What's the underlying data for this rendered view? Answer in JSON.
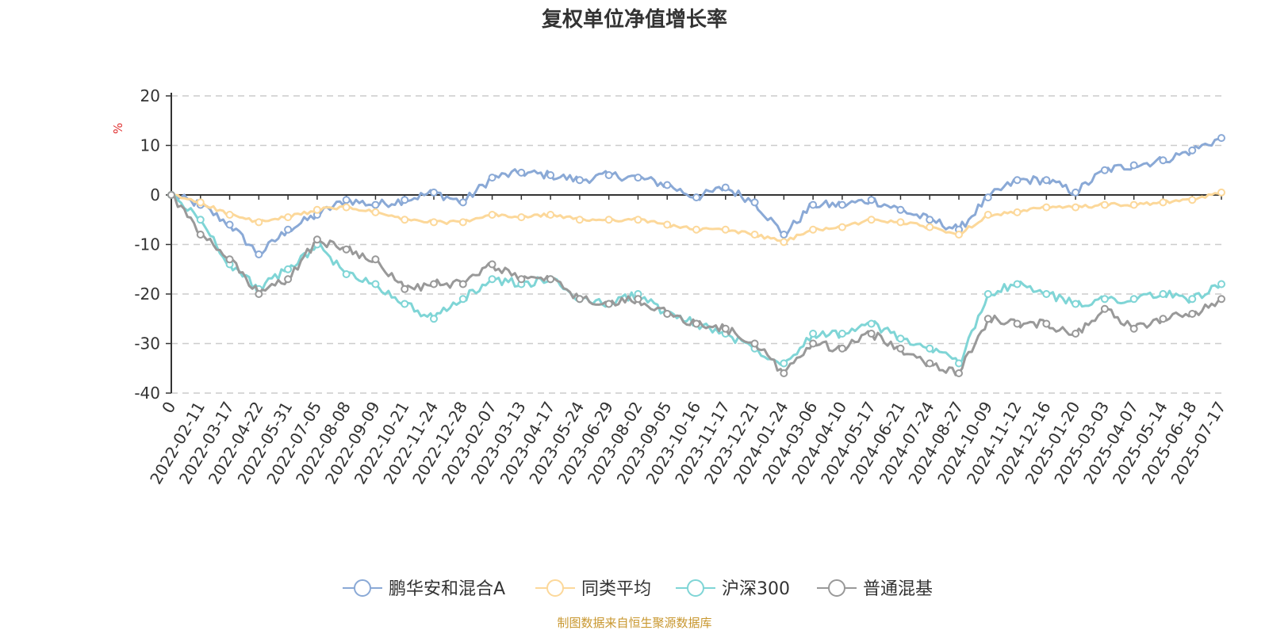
{
  "page": {
    "footer": "制图数据来自恒生聚源数据库"
  },
  "chart_data": {
    "type": "line",
    "title": "复权单位净值增长率",
    "ylabel": "%",
    "xlabel": "",
    "ylim": [
      -40,
      20
    ],
    "yticks": [
      20,
      10,
      0,
      -10,
      -20,
      -30,
      -40
    ],
    "grid": true,
    "legend_position": "bottom",
    "x_start_label": "0",
    "x": [
      "0",
      "2022-02-11",
      "2022-03-17",
      "2022-04-22",
      "2022-05-31",
      "2022-07-05",
      "2022-08-08",
      "2022-09-09",
      "2022-10-21",
      "2022-11-24",
      "2022-12-28",
      "2023-02-07",
      "2023-03-13",
      "2023-04-17",
      "2023-05-24",
      "2023-06-29",
      "2023-08-02",
      "2023-09-05",
      "2023-10-16",
      "2023-11-17",
      "2023-12-21",
      "2024-01-24",
      "2024-03-06",
      "2024-04-10",
      "2024-05-17",
      "2024-06-21",
      "2024-07-24",
      "2024-08-27",
      "2024-10-09",
      "2024-11-12",
      "2024-12-16",
      "2025-01-20",
      "2025-03-03",
      "2025-04-07",
      "2025-05-14",
      "2025-06-18",
      "2025-07-17"
    ],
    "series": [
      {
        "name": "鹏华安和混合A",
        "color": "#8aa9d6",
        "values": [
          0,
          -2,
          -6,
          -12,
          -7,
          -4,
          -1,
          -2,
          -1,
          0.5,
          -1.5,
          3.5,
          4.5,
          4,
          3,
          4,
          3.5,
          2,
          -0.5,
          1.5,
          -1.5,
          -8,
          -2,
          -2,
          -1,
          -3,
          -5,
          -7,
          -0.5,
          3,
          3,
          0.5,
          5,
          6,
          7,
          9,
          11.5
        ]
      },
      {
        "name": "同类平均",
        "color": "#fcd89a",
        "values": [
          0,
          -1.5,
          -4,
          -5.5,
          -4.5,
          -3,
          -2.5,
          -3.5,
          -5,
          -5.5,
          -5.5,
          -4,
          -4.5,
          -4,
          -5,
          -5,
          -5,
          -6,
          -7,
          -7,
          -8,
          -9.5,
          -7,
          -6.5,
          -5,
          -5.5,
          -6.5,
          -8,
          -4,
          -3.5,
          -2.5,
          -2.5,
          -2,
          -2,
          -1.5,
          -1,
          0.5
        ]
      },
      {
        "name": "沪深300",
        "color": "#7fd5d6",
        "values": [
          0,
          -5,
          -14,
          -19,
          -15,
          -10,
          -16,
          -18,
          -22,
          -25,
          -21,
          -17,
          -18,
          -17,
          -21,
          -22,
          -20,
          -24,
          -26,
          -28,
          -31,
          -34,
          -28,
          -28,
          -26,
          -29,
          -31,
          -34,
          -20,
          -18,
          -20,
          -22,
          -21,
          -21,
          -20,
          -21,
          -18
        ]
      },
      {
        "name": "普通混基",
        "color": "#999999",
        "values": [
          0,
          -8,
          -13,
          -20,
          -17,
          -9,
          -11,
          -13,
          -19,
          -18,
          -18,
          -14,
          -17,
          -17,
          -21,
          -22,
          -21,
          -24,
          -26,
          -27,
          -30,
          -36,
          -30,
          -31,
          -28,
          -31,
          -34,
          -36,
          -25,
          -26,
          -26,
          -28,
          -23,
          -27,
          -25,
          -24,
          -21
        ]
      }
    ]
  }
}
